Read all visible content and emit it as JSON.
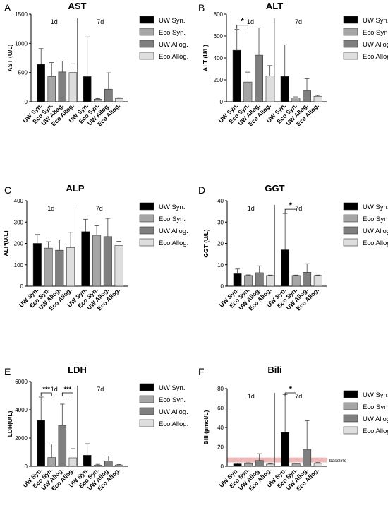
{
  "legend_labels": [
    "UW Syn.",
    "Eco Syn.",
    "UW Allog.",
    "Eco Allog."
  ],
  "colors": {
    "uw_syn": "#000000",
    "eco_syn": "#a6a6a6",
    "uw_allog": "#7f7f7f",
    "eco_allog": "#dedede",
    "baseline_band": "#e8a0a0",
    "axis": "#000000"
  },
  "chart_data": [
    {
      "type": "bar",
      "panel_letter": "A",
      "title": "AST",
      "ylabel": "AST (U/L)",
      "ylim": [
        0,
        1500
      ],
      "yticks": [
        0,
        500,
        1000,
        1500
      ],
      "groups": [
        {
          "label": "1d",
          "categories": [
            "UW Syn.",
            "Eco Syn.",
            "UW Allog.",
            "Eco Allog."
          ],
          "values": [
            640,
            430,
            510,
            500
          ],
          "errors": [
            270,
            240,
            185,
            150
          ]
        },
        {
          "label": "7d",
          "categories": [
            "UW Syn.",
            "Eco Syn.",
            "UW Allog.",
            "Eco Allog."
          ],
          "values": [
            430,
            45,
            215,
            55
          ],
          "errors": [
            680,
            10,
            280,
            15
          ]
        }
      ],
      "annotations": []
    },
    {
      "type": "bar",
      "panel_letter": "B",
      "title": "ALT",
      "ylabel": "ALT (U/L)",
      "ylim": [
        0,
        800
      ],
      "yticks": [
        0,
        200,
        400,
        600,
        800
      ],
      "groups": [
        {
          "label": "1d",
          "categories": [
            "UW Syn.",
            "Eco Syn.",
            "UW Allog.",
            "Eco Allog."
          ],
          "values": [
            470,
            180,
            425,
            235
          ],
          "errors": [
            190,
            90,
            250,
            95
          ]
        },
        {
          "label": "7d",
          "categories": [
            "UW Syn.",
            "Eco Syn.",
            "UW Allog.",
            "Eco Allog."
          ],
          "values": [
            230,
            35,
            100,
            50
          ],
          "errors": [
            290,
            10,
            110,
            8
          ]
        }
      ],
      "annotations": [
        {
          "text": "*",
          "group": 0,
          "from": 0,
          "to": 1
        }
      ]
    },
    {
      "type": "bar",
      "panel_letter": "C",
      "title": "ALP",
      "ylabel": "ALP(U/L)",
      "ylim": [
        0,
        400
      ],
      "yticks": [
        0,
        100,
        200,
        300,
        400
      ],
      "groups": [
        {
          "label": "1d",
          "categories": [
            "UW Syn.",
            "Eco Syn.",
            "UW Allog.",
            "Eco Allog."
          ],
          "values": [
            200,
            178,
            168,
            180
          ],
          "errors": [
            42,
            30,
            48,
            72
          ]
        },
        {
          "label": "7d",
          "categories": [
            "UW Syn.",
            "Eco Syn.",
            "UW Allog.",
            "Eco Allog."
          ],
          "values": [
            255,
            238,
            232,
            190
          ],
          "errors": [
            58,
            45,
            85,
            20
          ]
        }
      ],
      "annotations": []
    },
    {
      "type": "bar",
      "panel_letter": "D",
      "title": "GGT",
      "ylabel": "GGT (U/L)",
      "ylim": [
        0,
        40
      ],
      "yticks": [
        0,
        10,
        20,
        30,
        40
      ],
      "groups": [
        {
          "label": "1d",
          "categories": [
            "UW Syn.",
            "Eco Syn.",
            "UW Allog.",
            "Eco Allog."
          ],
          "values": [
            5.8,
            5,
            6.3,
            5
          ],
          "errors": [
            2.2,
            0.3,
            3.2,
            0.2
          ]
        },
        {
          "label": "7d",
          "categories": [
            "UW Syn.",
            "Eco Syn.",
            "UW Allog.",
            "Eco Allog."
          ],
          "values": [
            17,
            5,
            6.5,
            5
          ],
          "errors": [
            17,
            0.2,
            4,
            0.2
          ]
        }
      ],
      "annotations": [
        {
          "text": "*",
          "group": 1,
          "from": 0,
          "to": 1
        }
      ]
    },
    {
      "type": "bar",
      "panel_letter": "E",
      "title": "LDH",
      "ylabel": "LDH(U/L)",
      "ylim": [
        0,
        6000
      ],
      "yticks": [
        0,
        2000,
        4000,
        6000
      ],
      "groups": [
        {
          "label": "1d",
          "categories": [
            "UW Syn.",
            "Eco Syn.",
            "UW Allog.",
            "Eco Allog."
          ],
          "values": [
            3250,
            620,
            2900,
            600
          ],
          "errors": [
            1650,
            950,
            1500,
            650
          ]
        },
        {
          "label": "7d",
          "categories": [
            "UW Syn.",
            "Eco Syn.",
            "UW Allog.",
            "Eco Allog."
          ],
          "values": [
            780,
            80,
            380,
            90
          ],
          "errors": [
            820,
            60,
            350,
            40
          ]
        }
      ],
      "annotations": [
        {
          "text": "***",
          "group": 0,
          "from": 0,
          "to": 1
        },
        {
          "text": "***",
          "group": 0,
          "from": 2,
          "to": 3
        }
      ]
    },
    {
      "type": "bar",
      "panel_letter": "F",
      "title": "Bili",
      "ylabel": "Bili (µmol/L)",
      "ylim": [
        0,
        80
      ],
      "yticks": [
        0,
        20,
        40,
        60,
        80
      ],
      "groups": [
        {
          "label": "1d",
          "categories": [
            "UW Syn.",
            "Eco Syn.",
            "UW Allog.",
            "Eco Allog."
          ],
          "values": [
            2.5,
            2.8,
            6,
            2.2
          ],
          "errors": [
            0.8,
            0.8,
            7,
            0.6
          ]
        },
        {
          "label": "7d",
          "categories": [
            "UW Syn.",
            "Eco Syn.",
            "UW Allog.",
            "Eco Allog."
          ],
          "values": [
            35,
            2.5,
            17.5,
            3
          ],
          "errors": [
            39,
            0.8,
            29.5,
            0.8
          ]
        }
      ],
      "annotations": [
        {
          "text": "*",
          "group": 1,
          "from": 0,
          "to": 1
        }
      ],
      "baseline_band": {
        "label": "baseline",
        "from": 4,
        "to": 9
      }
    }
  ]
}
